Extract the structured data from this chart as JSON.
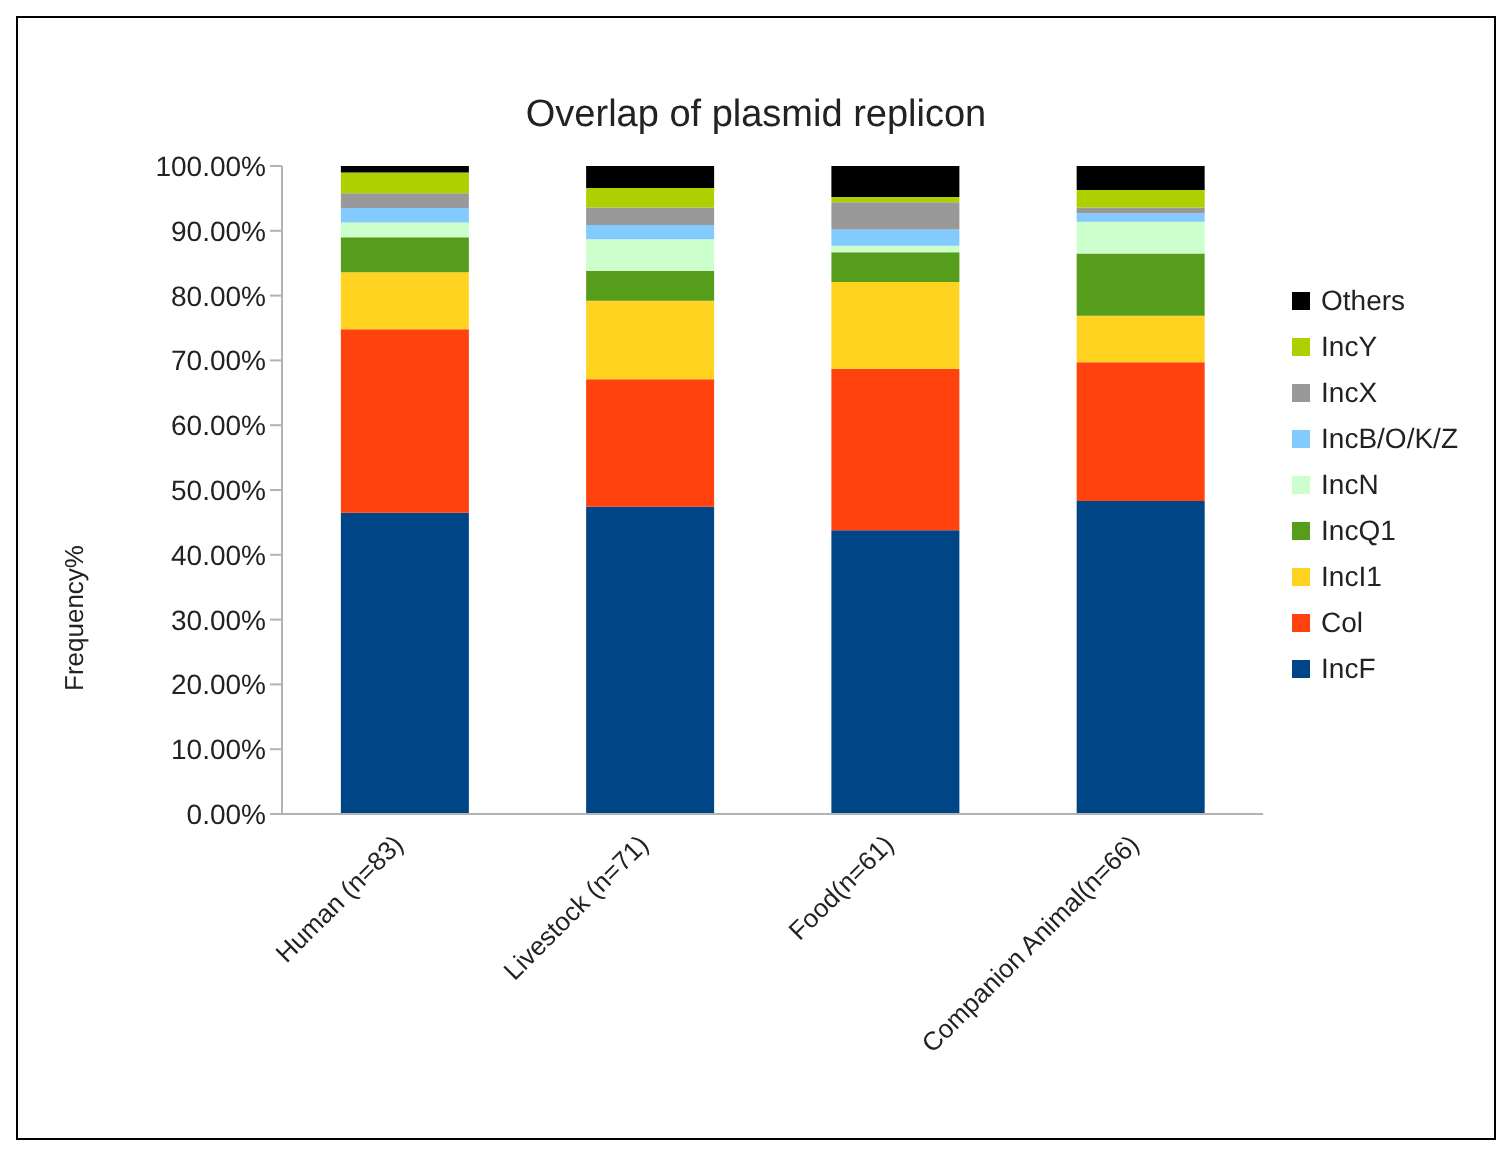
{
  "chart_data": {
    "type": "bar",
    "title": "Overlap of plasmid replicon",
    "ylabel": "Frequency%",
    "categories": [
      "Human (n=83)",
      "Livestock (n=71)",
      "Food(n=61)",
      "Companion Animal(n=66)"
    ],
    "stacked": true,
    "legend": "right",
    "grid": false,
    "ylim": [
      0,
      100
    ],
    "yticks": [
      {
        "value": 0,
        "label": "0.00%"
      },
      {
        "value": 10,
        "label": "10.00%"
      },
      {
        "value": 20,
        "label": "20.00%"
      },
      {
        "value": 30,
        "label": "30.00%"
      },
      {
        "value": 40,
        "label": "40.00%"
      },
      {
        "value": 50,
        "label": "50.00%"
      },
      {
        "value": 60,
        "label": "60.00%"
      },
      {
        "value": 70,
        "label": "70.00%"
      },
      {
        "value": 80,
        "label": "80.00%"
      },
      {
        "value": 90,
        "label": "90.00%"
      },
      {
        "value": 100,
        "label": "100.00%"
      }
    ],
    "series": [
      {
        "name": "IncF",
        "color": "#004586",
        "values": [
          46.5,
          47.4,
          43.8,
          48.3
        ]
      },
      {
        "name": "Col",
        "color": "#ff420e",
        "values": [
          28.3,
          19.7,
          24.9,
          21.4
        ]
      },
      {
        "name": "IncI1",
        "color": "#ffd320",
        "values": [
          8.8,
          12.1,
          13.4,
          7.2
        ]
      },
      {
        "name": "IncQ1",
        "color": "#579d1c",
        "values": [
          5.4,
          4.6,
          4.6,
          9.6
        ]
      },
      {
        "name": "IncN",
        "color": "#ccffcc",
        "values": [
          2.3,
          4.9,
          1.0,
          4.9
        ]
      },
      {
        "name": "IncB/O/K/Z",
        "color": "#83caff",
        "values": [
          2.2,
          2.2,
          2.5,
          1.3
        ]
      },
      {
        "name": "IncX",
        "color": "#999999",
        "values": [
          2.3,
          2.7,
          4.2,
          0.9
        ]
      },
      {
        "name": "IncY",
        "color": "#aecf00",
        "values": [
          3.2,
          3.0,
          0.8,
          2.7
        ]
      },
      {
        "name": "Others",
        "color": "#000000",
        "values": [
          1.0,
          3.4,
          4.8,
          3.7
        ]
      }
    ]
  }
}
